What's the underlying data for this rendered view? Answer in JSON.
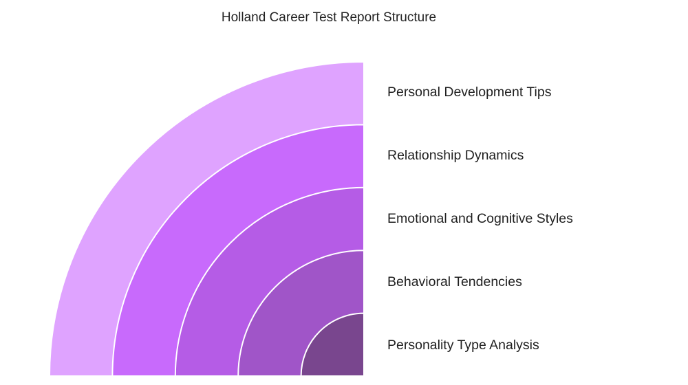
{
  "title": "Holland Career Test Report Structure",
  "layers": [
    {
      "label": "Personal Development Tips",
      "color": "#dfa3ff"
    },
    {
      "label": "Relationship Dynamics",
      "color": "#c86afc"
    },
    {
      "label": "Emotional and Cognitive Styles",
      "color": "#b55ce6"
    },
    {
      "label": "Behavioral Tendencies",
      "color": "#a055c8"
    },
    {
      "label": "Personality Type Analysis",
      "color": "#79468e"
    }
  ]
}
